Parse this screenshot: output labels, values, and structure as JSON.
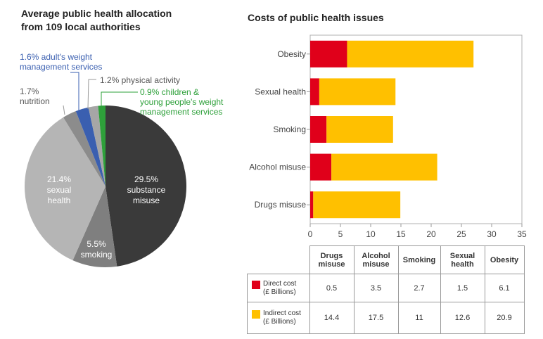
{
  "pie": {
    "title_line1": "Average public health allocation",
    "title_line2": "from 109 local authorities",
    "labels": {
      "substance_pct": "29.5%",
      "substance_text": "substance",
      "substance_text2": "misuse",
      "smoking_pct": "5.5%",
      "smoking_text": "smoking",
      "sexual_pct": "21.4%",
      "sexual_text": "sexual",
      "sexual_text2": "health",
      "nutrition_pct": "1.7%",
      "nutrition_text": "nutrition",
      "adult_line1": "1.6% adult's weight",
      "adult_line2": "management services",
      "physical": "1.2% physical activity",
      "children_line1": "0.9% children &",
      "children_line2": "young people's weight",
      "children_line3": "management services"
    }
  },
  "bar": {
    "title": "Costs of public health issues"
  },
  "colors": {
    "substance": "#3a3a3a",
    "smoking": "#7f7f7f",
    "sexual": "#b5b5b5",
    "nutrition": "#8c8c8c",
    "adult": "#3a5fb0",
    "physical": "#a6a6a6",
    "children": "#2ea03a",
    "direct": "#e0001a",
    "indirect": "#ffc000",
    "adult_text": "#3a5fb0",
    "children_text": "#2ea03a"
  },
  "chart_data": [
    {
      "type": "pie",
      "title": "Average public health allocation from 109 local authorities",
      "slices": [
        {
          "label": "substance misuse",
          "value": 29.5
        },
        {
          "label": "smoking",
          "value": 5.5
        },
        {
          "label": "sexual health",
          "value": 21.4
        },
        {
          "label": "nutrition",
          "value": 1.7
        },
        {
          "label": "adult's weight management services",
          "value": 1.6
        },
        {
          "label": "physical activity",
          "value": 1.2
        },
        {
          "label": "children & young people's weight management services",
          "value": 0.9
        }
      ]
    },
    {
      "type": "bar",
      "orientation": "horizontal",
      "stacked": true,
      "title": "Costs of public health issues",
      "categories": [
        "Obesity",
        "Sexual health",
        "Smoking",
        "Alcohol misuse",
        "Drugs misuse"
      ],
      "series": [
        {
          "name": "Direct cost (£ Billions)",
          "values": [
            6.1,
            1.5,
            2.7,
            3.5,
            0.5
          ]
        },
        {
          "name": "Indirect cost (£ Billions)",
          "values": [
            20.9,
            12.6,
            11,
            17.5,
            14.4
          ]
        }
      ],
      "xlim": [
        0,
        35
      ],
      "xticks": [
        "0",
        "5",
        "10",
        "15",
        "20",
        "25",
        "30",
        "35"
      ]
    }
  ],
  "table": {
    "headers": [
      [
        "Drugs",
        "misuse"
      ],
      [
        "Alcohol",
        "misuse"
      ],
      [
        "Smoking",
        ""
      ],
      [
        "Sexual",
        "health"
      ],
      [
        "Obesity",
        ""
      ]
    ],
    "rows": [
      {
        "label1": "Direct cost",
        "label2": "(£ Billions)",
        "values": [
          "0.5",
          "3.5",
          "2.7",
          "1.5",
          "6.1"
        ]
      },
      {
        "label1": "Indirect cost",
        "label2": "(£ Billions)",
        "values": [
          "14.4",
          "17.5",
          "11",
          "12.6",
          "20.9"
        ]
      }
    ]
  }
}
